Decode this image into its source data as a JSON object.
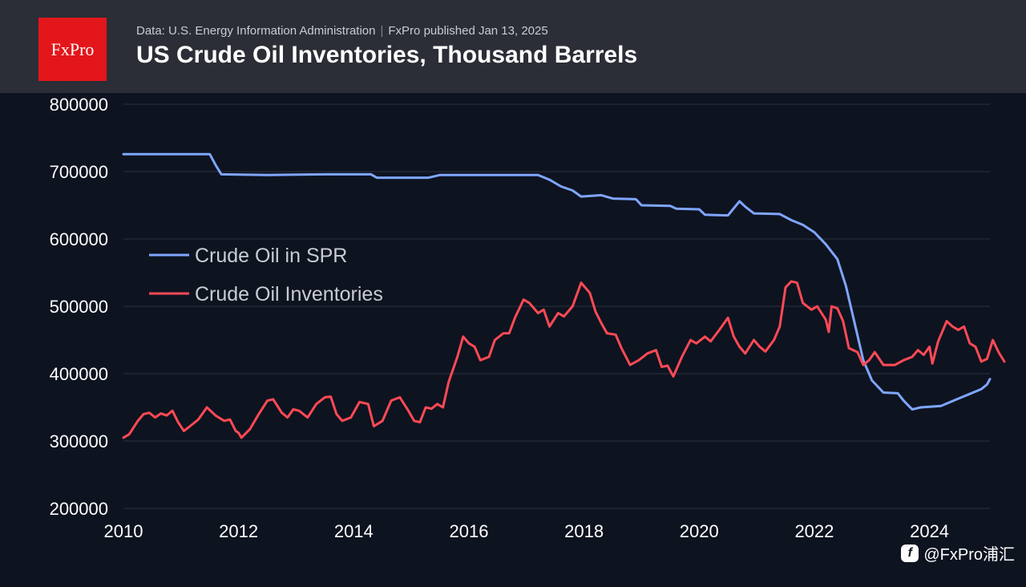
{
  "header": {
    "logo_text": "FxPro",
    "source": "Data: U.S. Energy Information Administration",
    "published": "FxPro published Jan 13, 2025",
    "title": "US Crude Oil Inventories, Thousand Barrels"
  },
  "watermark": {
    "text": "@FxPro浦汇",
    "icon": "facebook-style-f-icon"
  },
  "colors": {
    "background": "#0e1320",
    "header": "#2b2e36",
    "logo": "#e3161b",
    "spr": "#7fa6ff",
    "inventories": "#ff4a55",
    "grid": "#2c3140"
  },
  "chart_data": {
    "type": "line",
    "title": "US Crude Oil Inventories, Thousand Barrels",
    "xlabel": "",
    "ylabel": "",
    "xlim": [
      2010,
      2025.05
    ],
    "ylim": [
      200000,
      800000
    ],
    "x_ticks": [
      2010,
      2012,
      2014,
      2016,
      2018,
      2020,
      2022,
      2024
    ],
    "x_tick_labels": [
      "2010",
      "2012",
      "2014",
      "2016",
      "2018",
      "2020",
      "2022",
      "2024"
    ],
    "y_ticks": [
      200000,
      300000,
      400000,
      500000,
      600000,
      700000,
      800000
    ],
    "y_tick_labels": [
      "200000",
      "300000",
      "400000",
      "500000",
      "600000",
      "700000",
      "800000"
    ],
    "grid": "horizontal",
    "legend_position": "middle-left",
    "series": [
      {
        "name": "Crude Oil in SPR",
        "color": "#7fa6ff",
        "points": [
          [
            2010.0,
            726000
          ],
          [
            2011.5,
            726000
          ],
          [
            2011.6,
            710000
          ],
          [
            2011.7,
            696000
          ],
          [
            2012.5,
            695000
          ],
          [
            2013.5,
            696000
          ],
          [
            2014.3,
            696000
          ],
          [
            2014.4,
            691000
          ],
          [
            2015.0,
            691000
          ],
          [
            2015.3,
            691000
          ],
          [
            2015.5,
            695000
          ],
          [
            2016.5,
            695000
          ],
          [
            2017.2,
            695000
          ],
          [
            2017.4,
            688000
          ],
          [
            2017.6,
            678000
          ],
          [
            2017.8,
            672000
          ],
          [
            2017.95,
            663000
          ],
          [
            2018.3,
            665000
          ],
          [
            2018.5,
            660000
          ],
          [
            2018.9,
            659000
          ],
          [
            2019.0,
            650000
          ],
          [
            2019.5,
            649000
          ],
          [
            2019.6,
            645000
          ],
          [
            2020.0,
            644000
          ],
          [
            2020.1,
            636000
          ],
          [
            2020.5,
            635000
          ],
          [
            2020.7,
            656000
          ],
          [
            2020.8,
            648000
          ],
          [
            2020.95,
            638000
          ],
          [
            2021.4,
            637000
          ],
          [
            2021.6,
            628000
          ],
          [
            2021.8,
            621000
          ],
          [
            2022.0,
            610000
          ],
          [
            2022.2,
            592000
          ],
          [
            2022.4,
            570000
          ],
          [
            2022.55,
            530000
          ],
          [
            2022.7,
            475000
          ],
          [
            2022.85,
            420000
          ],
          [
            2023.0,
            390000
          ],
          [
            2023.2,
            372000
          ],
          [
            2023.45,
            371000
          ],
          [
            2023.55,
            360000
          ],
          [
            2023.7,
            347000
          ],
          [
            2023.85,
            350000
          ],
          [
            2024.2,
            352000
          ],
          [
            2024.5,
            363000
          ],
          [
            2024.7,
            370000
          ],
          [
            2024.9,
            377000
          ],
          [
            2025.0,
            384000
          ],
          [
            2025.05,
            392000
          ]
        ]
      },
      {
        "name": "Crude Oil Inventories",
        "color": "#ff4a55",
        "points": [
          [
            2010.0,
            305000
          ],
          [
            2010.1,
            310000
          ],
          [
            2010.25,
            330000
          ],
          [
            2010.35,
            340000
          ],
          [
            2010.45,
            342000
          ],
          [
            2010.55,
            335000
          ],
          [
            2010.65,
            341000
          ],
          [
            2010.75,
            338000
          ],
          [
            2010.85,
            345000
          ],
          [
            2010.95,
            328000
          ],
          [
            2011.05,
            315000
          ],
          [
            2011.2,
            325000
          ],
          [
            2011.3,
            332000
          ],
          [
            2011.45,
            350000
          ],
          [
            2011.6,
            338000
          ],
          [
            2011.75,
            330000
          ],
          [
            2011.85,
            332000
          ],
          [
            2011.95,
            315000
          ],
          [
            2012.0,
            312000
          ],
          [
            2012.05,
            305000
          ],
          [
            2012.2,
            318000
          ],
          [
            2012.35,
            340000
          ],
          [
            2012.5,
            360000
          ],
          [
            2012.6,
            362000
          ],
          [
            2012.75,
            342000
          ],
          [
            2012.85,
            335000
          ],
          [
            2012.95,
            347000
          ],
          [
            2013.05,
            345000
          ],
          [
            2013.2,
            335000
          ],
          [
            2013.35,
            355000
          ],
          [
            2013.5,
            365000
          ],
          [
            2013.6,
            366000
          ],
          [
            2013.7,
            340000
          ],
          [
            2013.8,
            330000
          ],
          [
            2013.95,
            335000
          ],
          [
            2014.1,
            358000
          ],
          [
            2014.25,
            355000
          ],
          [
            2014.35,
            322000
          ],
          [
            2014.5,
            330000
          ],
          [
            2014.65,
            360000
          ],
          [
            2014.8,
            365000
          ],
          [
            2014.95,
            345000
          ],
          [
            2015.05,
            330000
          ],
          [
            2015.15,
            328000
          ],
          [
            2015.25,
            350000
          ],
          [
            2015.35,
            348000
          ],
          [
            2015.45,
            355000
          ],
          [
            2015.55,
            350000
          ],
          [
            2015.65,
            388000
          ],
          [
            2015.8,
            425000
          ],
          [
            2015.9,
            455000
          ],
          [
            2016.0,
            445000
          ],
          [
            2016.1,
            440000
          ],
          [
            2016.2,
            420000
          ],
          [
            2016.35,
            425000
          ],
          [
            2016.45,
            450000
          ],
          [
            2016.6,
            460000
          ],
          [
            2016.7,
            460000
          ],
          [
            2016.8,
            483000
          ],
          [
            2016.95,
            510000
          ],
          [
            2017.05,
            505000
          ],
          [
            2017.2,
            490000
          ],
          [
            2017.3,
            495000
          ],
          [
            2017.4,
            470000
          ],
          [
            2017.55,
            490000
          ],
          [
            2017.65,
            485000
          ],
          [
            2017.8,
            500000
          ],
          [
            2017.95,
            535000
          ],
          [
            2018.1,
            520000
          ],
          [
            2018.2,
            492000
          ],
          [
            2018.3,
            475000
          ],
          [
            2018.4,
            460000
          ],
          [
            2018.55,
            458000
          ],
          [
            2018.65,
            438000
          ],
          [
            2018.8,
            413000
          ],
          [
            2018.95,
            420000
          ],
          [
            2019.1,
            430000
          ],
          [
            2019.25,
            435000
          ],
          [
            2019.35,
            410000
          ],
          [
            2019.45,
            412000
          ],
          [
            2019.55,
            396000
          ],
          [
            2019.7,
            425000
          ],
          [
            2019.85,
            450000
          ],
          [
            2019.95,
            445000
          ],
          [
            2020.1,
            455000
          ],
          [
            2020.2,
            448000
          ],
          [
            2020.35,
            465000
          ],
          [
            2020.5,
            483000
          ],
          [
            2020.6,
            455000
          ],
          [
            2020.7,
            440000
          ],
          [
            2020.8,
            430000
          ],
          [
            2020.95,
            450000
          ],
          [
            2021.05,
            440000
          ],
          [
            2021.15,
            433000
          ],
          [
            2021.3,
            450000
          ],
          [
            2021.4,
            470000
          ],
          [
            2021.5,
            528000
          ],
          [
            2021.6,
            537000
          ],
          [
            2021.7,
            535000
          ],
          [
            2021.8,
            505000
          ],
          [
            2021.95,
            495000
          ],
          [
            2022.05,
            500000
          ],
          [
            2022.2,
            480000
          ],
          [
            2022.25,
            462000
          ],
          [
            2022.3,
            500000
          ],
          [
            2022.4,
            497000
          ],
          [
            2022.5,
            478000
          ],
          [
            2022.6,
            438000
          ],
          [
            2022.75,
            432000
          ],
          [
            2022.85,
            413000
          ],
          [
            2022.95,
            420000
          ],
          [
            2023.05,
            432000
          ],
          [
            2023.2,
            413000
          ],
          [
            2023.4,
            413000
          ],
          [
            2023.55,
            420000
          ],
          [
            2023.7,
            425000
          ],
          [
            2023.8,
            435000
          ],
          [
            2023.9,
            428000
          ],
          [
            2024.0,
            440000
          ],
          [
            2024.05,
            415000
          ],
          [
            2024.15,
            448000
          ],
          [
            2024.3,
            478000
          ],
          [
            2024.4,
            470000
          ],
          [
            2024.5,
            465000
          ],
          [
            2024.6,
            470000
          ],
          [
            2024.7,
            445000
          ],
          [
            2024.8,
            440000
          ],
          [
            2024.9,
            418000
          ],
          [
            2025.0,
            422000
          ],
          [
            2025.1,
            450000
          ],
          [
            2025.2,
            432000
          ],
          [
            2025.3,
            418000
          ]
        ]
      }
    ]
  }
}
